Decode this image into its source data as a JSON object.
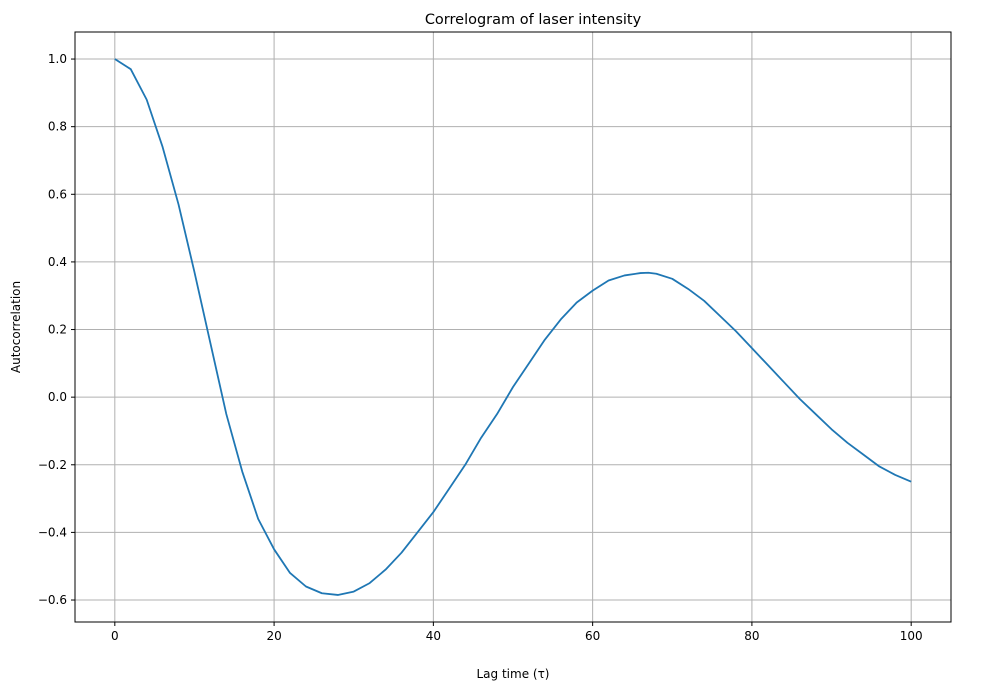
{
  "chart_data": {
    "type": "line",
    "title": "Correlogram of laser intensity",
    "xlabel": "Lag time (τ)",
    "ylabel": "Autocorrelation",
    "xlim": [
      -5,
      105
    ],
    "ylim": [
      -0.665,
      1.08
    ],
    "xticks": [
      0,
      20,
      40,
      60,
      80,
      100
    ],
    "xtick_labels": [
      "0",
      "20",
      "40",
      "60",
      "80",
      "100"
    ],
    "yticks": [
      -0.6,
      -0.4,
      -0.2,
      0.0,
      0.2,
      0.4,
      0.6,
      0.8,
      1.0
    ],
    "ytick_labels": [
      "−0.6",
      "−0.4",
      "−0.2",
      "0.0",
      "0.2",
      "0.4",
      "0.6",
      "0.8",
      "1.0"
    ],
    "grid": true,
    "line_color": "#1f77b4",
    "series": [
      {
        "x": [
          0,
          2,
          4,
          6,
          8,
          10,
          12,
          14,
          16,
          18,
          20,
          22,
          24,
          26,
          28,
          30,
          32,
          34,
          36,
          38,
          40,
          42,
          44,
          46,
          48,
          50,
          52,
          54,
          56,
          58,
          60,
          62,
          64,
          66,
          67,
          68,
          70,
          72,
          74,
          76,
          78,
          80,
          82,
          84,
          86,
          88,
          90,
          92,
          94,
          96,
          98,
          100
        ],
        "y": [
          1.0,
          0.97,
          0.88,
          0.74,
          0.57,
          0.37,
          0.16,
          -0.05,
          -0.22,
          -0.36,
          -0.45,
          -0.52,
          -0.56,
          -0.58,
          -0.585,
          -0.575,
          -0.55,
          -0.51,
          -0.46,
          -0.4,
          -0.34,
          -0.27,
          -0.2,
          -0.12,
          -0.05,
          0.03,
          0.1,
          0.17,
          0.23,
          0.28,
          0.315,
          0.345,
          0.36,
          0.367,
          0.368,
          0.365,
          0.35,
          0.32,
          0.285,
          0.24,
          0.195,
          0.145,
          0.095,
          0.045,
          -0.005,
          -0.05,
          -0.095,
          -0.135,
          -0.17,
          -0.205,
          -0.23,
          -0.25
        ]
      }
    ]
  }
}
